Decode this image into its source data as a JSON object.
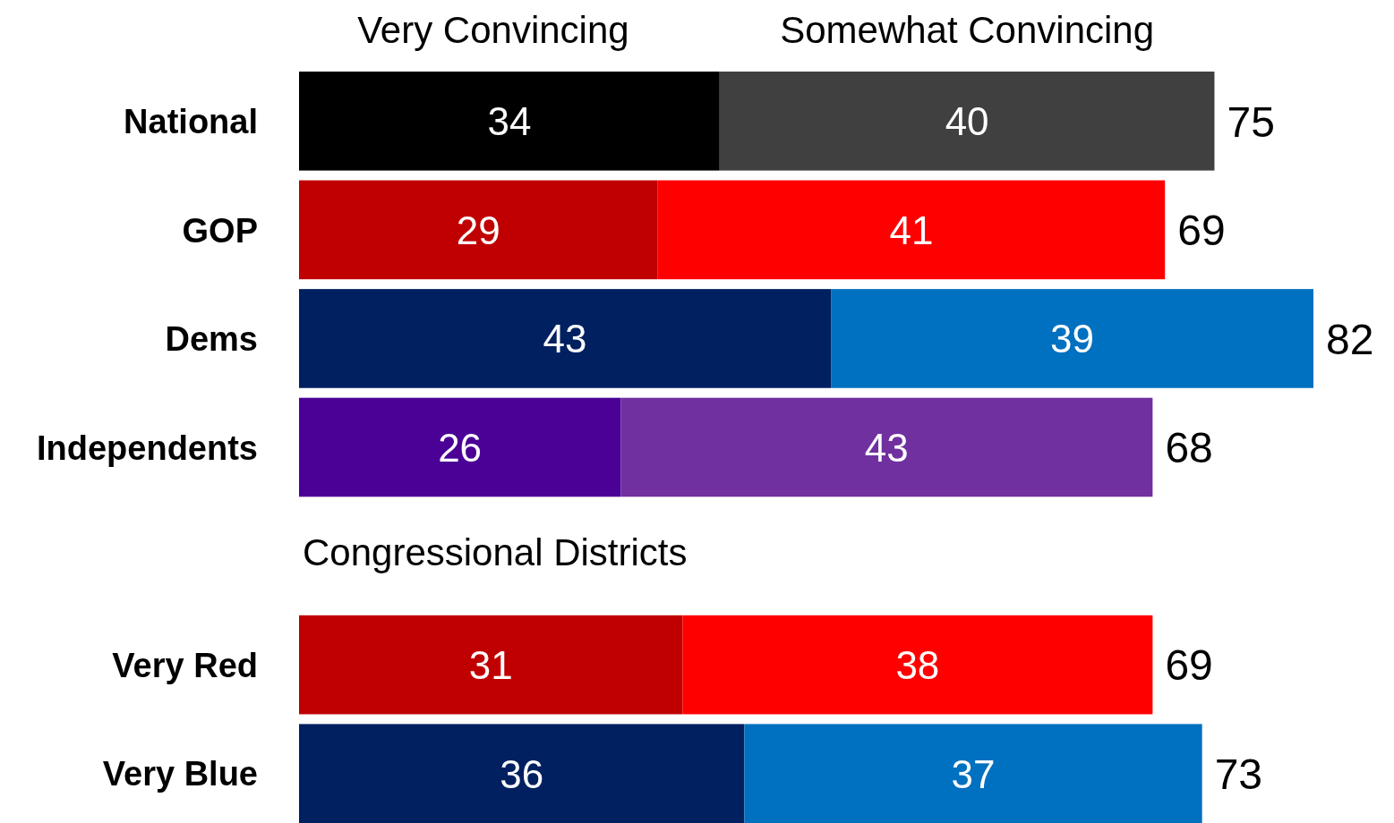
{
  "chart_data": {
    "type": "bar",
    "orientation": "horizontal",
    "stacked": true,
    "data_labels": true,
    "legend": "top",
    "categories": [
      "National",
      "GOP",
      "Dems",
      "Independents",
      null,
      "Very Red",
      "Very Blue"
    ],
    "series": [
      {
        "name": "Very Convincing",
        "values": [
          34,
          29,
          43,
          26,
          null,
          31,
          36
        ],
        "colors": [
          "#000000",
          "#c00000",
          "#002060",
          "#4b0096",
          null,
          "#c00000",
          "#002060"
        ]
      },
      {
        "name": "Somewhat Convincing",
        "values": [
          40,
          41,
          39,
          43,
          null,
          38,
          37
        ],
        "colors": [
          "#404040",
          "#ff0000",
          "#0070c0",
          "#7030a0",
          null,
          "#ff0000",
          "#0070c0"
        ]
      }
    ],
    "totals": [
      "75",
      "69",
      "82",
      "68",
      null,
      "69",
      "73"
    ],
    "annotations": [
      "Congressional Districts"
    ]
  }
}
